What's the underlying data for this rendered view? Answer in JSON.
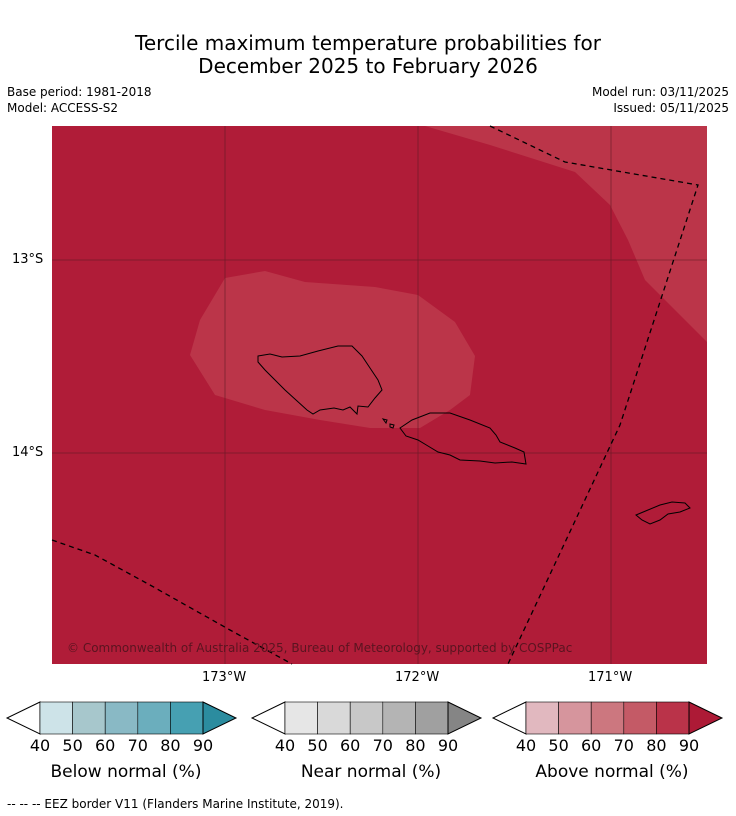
{
  "title_line1": "Tercile maximum temperature probabilities for",
  "title_line2": "December 2025 to February 2026",
  "base_period": "Base period: 1981-2018",
  "model": "Model: ACCESS-S2",
  "model_run": "Model run: 03/11/2025",
  "issued": "Issued: 05/11/2025",
  "map": {
    "lat_labels": [
      "13°S",
      "14°S"
    ],
    "lon_labels": [
      "173°W",
      "172°W",
      "171°W"
    ],
    "copyright": "© Commonwealth of Australia 2025, Bureau of Meteorology, supported by COSPPac",
    "colors": {
      "category_70_80": "#bb3549",
      "category_80_90": "#b01c38"
    }
  },
  "colorbars": [
    {
      "label": "Below normal (%)",
      "ticks": [
        "40",
        "50",
        "60",
        "70",
        "80",
        "90"
      ],
      "colors": [
        "#cde3e8",
        "#a7c7cc",
        "#89b9c5",
        "#6baebd",
        "#46a0b2",
        "#2b8c9f"
      ]
    },
    {
      "label": "Near normal (%)",
      "ticks": [
        "40",
        "50",
        "60",
        "70",
        "80",
        "90"
      ],
      "colors": [
        "#e6e6e6",
        "#d9d9d9",
        "#c8c8c8",
        "#b4b4b4",
        "#a0a0a0",
        "#858585"
      ]
    },
    {
      "label": "Above normal (%)",
      "ticks": [
        "40",
        "50",
        "60",
        "70",
        "80",
        "90"
      ],
      "colors": [
        "#e1b8bf",
        "#d6959d",
        "#cc777f",
        "#c45a66",
        "#ba3349",
        "#ad1a36"
      ]
    }
  ],
  "footnote": "--  --  -- EEZ border V11 (Flanders Marine Institute, 2019)."
}
